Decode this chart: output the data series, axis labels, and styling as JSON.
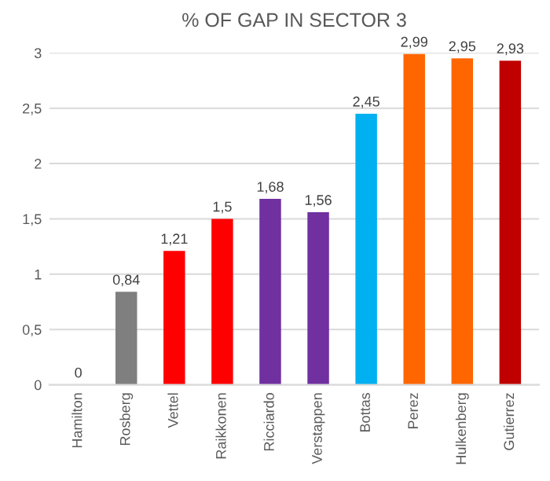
{
  "chart_data": {
    "type": "bar",
    "title": "% OF GAP IN SECTOR 3",
    "categories": [
      "Hamilton",
      "Rosberg",
      "Vettel",
      "Raikkonen",
      "Ricciardo",
      "Verstappen",
      "Bottas",
      "Perez",
      "Hulkenberg",
      "Gutierrez"
    ],
    "values": [
      0,
      0.84,
      1.21,
      1.5,
      1.68,
      1.56,
      2.45,
      2.99,
      2.95,
      2.93
    ],
    "value_labels": [
      "0",
      "0,84",
      "1,21",
      "1,5",
      "1,68",
      "1,56",
      "2,45",
      "2,99",
      "2,95",
      "2,93"
    ],
    "colors": [
      "#7f7f7f",
      "#7f7f7f",
      "#ff0000",
      "#ff0000",
      "#7030a0",
      "#7030a0",
      "#00b0f0",
      "#ff6600",
      "#ff6600",
      "#c00000"
    ],
    "ylim": [
      0,
      3
    ],
    "yticks": [
      0,
      {
        "value": 0.5,
        "label": "0,5"
      },
      1,
      {
        "value": 1.5,
        "label": "1,5"
      },
      2,
      {
        "value": 2.5,
        "label": "2,5"
      },
      3
    ],
    "grid": "y"
  }
}
